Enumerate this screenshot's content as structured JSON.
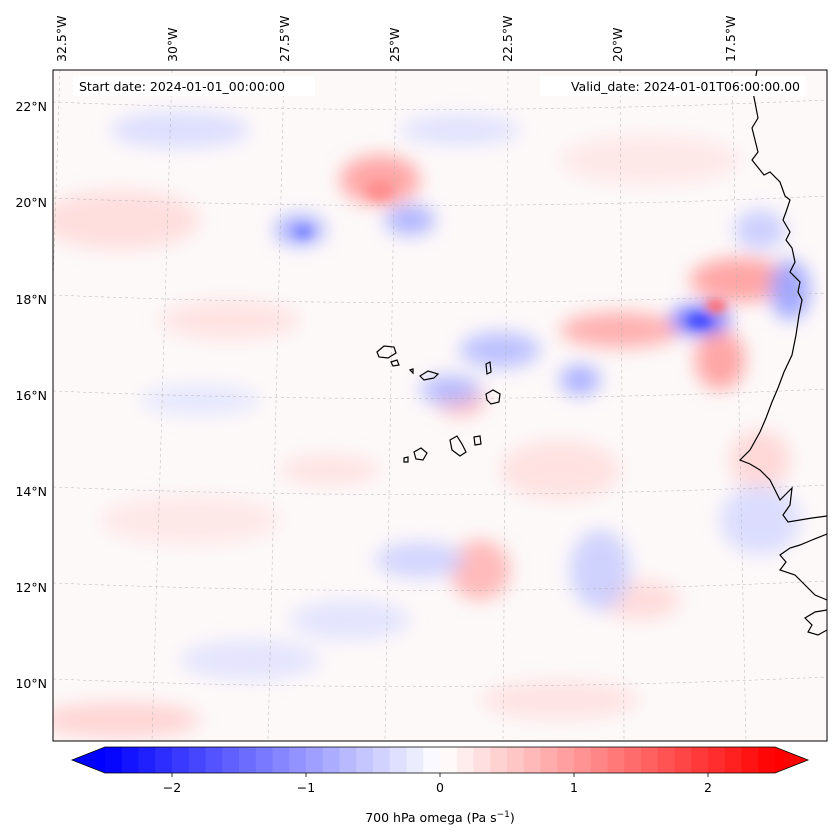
{
  "map": {
    "longitude_labels": [
      "32.5°W",
      "30°W",
      "27.5°W",
      "25°W",
      "22.5°W",
      "20°W",
      "17.5°W"
    ],
    "latitude_labels": [
      "22°N",
      "20°N",
      "18°N",
      "16°N",
      "14°N",
      "12°N",
      "10°N"
    ],
    "start_date_text": "Start date: 2024-01-01_00:00:00",
    "valid_date_text": "Valid_date: 2024-01-01T06:00:00.00",
    "field": "700 hPa omega",
    "gridlines": true,
    "coastline": true
  },
  "colorbar": {
    "label_main": "700 hPa omega (Pa s",
    "label_exponent": "−1",
    "label_close": ")",
    "ticks": [
      "−2",
      "−1",
      "0",
      "1",
      "2"
    ],
    "tick_values": [
      -2,
      -1,
      0,
      1,
      2
    ],
    "range": [
      -2.5,
      2.5
    ],
    "extend": "both",
    "colormap": "bwr",
    "color_negative": "#0000ff",
    "color_zero": "#ffffff",
    "color_positive": "#ff0000"
  }
}
